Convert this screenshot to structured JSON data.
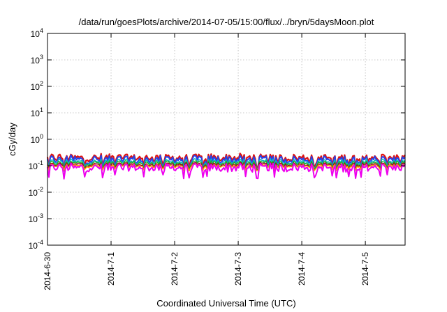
{
  "chart_data": {
    "type": "line",
    "title": "/data/run/goesPlots/archive/2014-07-05/15:00/flux/../bryn/5daysMoon.plot",
    "xlabel": "Coordinated Universal Time (UTC)",
    "ylabel": "cGy/day",
    "yscale": "log",
    "ylim": [
      0.0001,
      10000
    ],
    "y_ticks": [
      {
        "value": 0.0001,
        "base": "10",
        "exp": "-4"
      },
      {
        "value": 0.001,
        "base": "10",
        "exp": "-3"
      },
      {
        "value": 0.01,
        "base": "10",
        "exp": "-2"
      },
      {
        "value": 0.1,
        "base": "10",
        "exp": "-1"
      },
      {
        "value": 1,
        "base": "10",
        "exp": "0"
      },
      {
        "value": 10,
        "base": "10",
        "exp": "1"
      },
      {
        "value": 100,
        "base": "10",
        "exp": "2"
      },
      {
        "value": 1000,
        "base": "10",
        "exp": "3"
      },
      {
        "value": 10000,
        "base": "10",
        "exp": "4"
      }
    ],
    "xlim": [
      "2014-06-30T00:00",
      "2014-07-05T15:00"
    ],
    "x_ticks": [
      "2014-6-30",
      "2014-7-1",
      "2014-7-2",
      "2014-7-3",
      "2014-7-4",
      "2014-7-5"
    ],
    "x_tick_dates": [
      "2014-06-30",
      "2014-07-01",
      "2014-07-02",
      "2014-07-03",
      "2014-07-04",
      "2014-07-05"
    ],
    "grid": true,
    "legend": "none",
    "series": [
      {
        "color": "#dd1111",
        "base": 0.2,
        "spread": 0.28,
        "width": 2.2
      },
      {
        "color": "#2244ee",
        "base": 0.17,
        "spread": 0.3,
        "width": 2.0
      },
      {
        "color": "#11bbbb",
        "base": 0.14,
        "spread": 0.22,
        "width": 1.6
      },
      {
        "color": "#22aa22",
        "base": 0.125,
        "spread": 0.18,
        "width": 1.4
      },
      {
        "color": "#990022",
        "base": 0.11,
        "spread": 0.16,
        "width": 1.4
      },
      {
        "color": "#ffaa00",
        "base": 0.1,
        "spread": 0.14,
        "width": 1.4
      },
      {
        "color": "#ee00ee",
        "base": 0.085,
        "spread": 0.3,
        "width": 2.0
      }
    ]
  }
}
